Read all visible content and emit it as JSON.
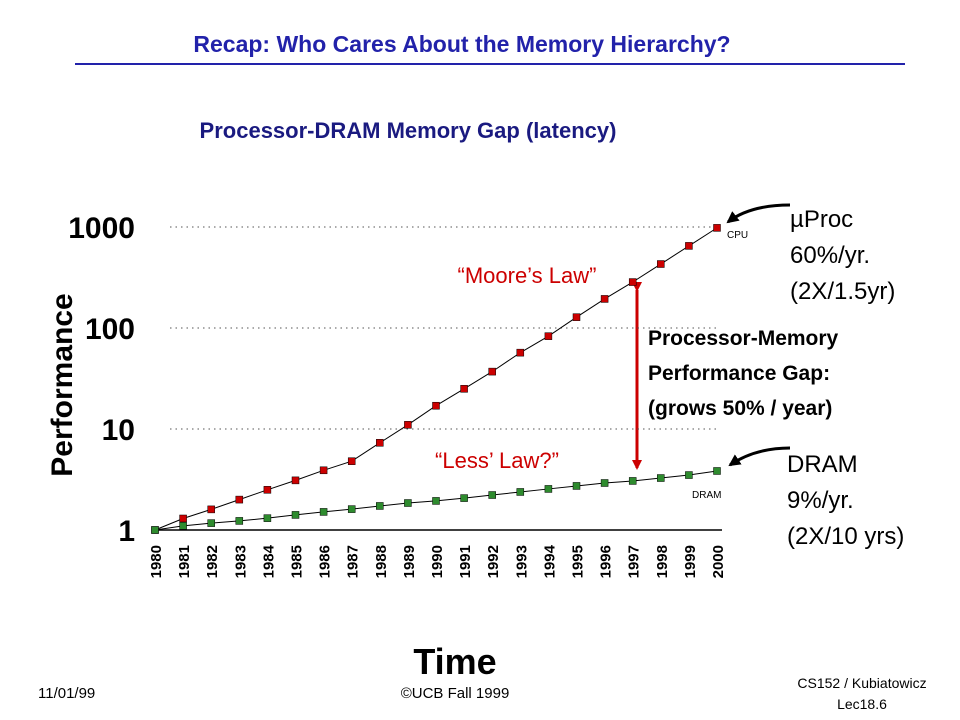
{
  "header": {
    "title": "Recap: Who Cares About the Memory Hierarchy?"
  },
  "chart_data": {
    "type": "line",
    "title": "Processor-DRAM Memory Gap (latency)",
    "x_label": "Time",
    "y_label": "Performance",
    "categories": [
      "1980",
      "1981",
      "1982",
      "1983",
      "1984",
      "1985",
      "1986",
      "1987",
      "1988",
      "1989",
      "1990",
      "1991",
      "1992",
      "1993",
      "1994",
      "1995",
      "1996",
      "1997",
      "1998",
      "1999",
      "2000"
    ],
    "series": [
      {
        "name": "CPU",
        "color": "#cc0000",
        "values": [
          1,
          1.3,
          1.6,
          2,
          2.5,
          3.1,
          3.9,
          4.8,
          7.3,
          11,
          17,
          25,
          37,
          57,
          83,
          128,
          194,
          285,
          430,
          650,
          980
        ]
      },
      {
        "name": "DRAM",
        "color": "#2e8b2e",
        "values": [
          1,
          1.1,
          1.17,
          1.23,
          1.31,
          1.41,
          1.51,
          1.61,
          1.73,
          1.85,
          1.94,
          2.07,
          2.22,
          2.38,
          2.55,
          2.73,
          2.92,
          3.06,
          3.27,
          3.5,
          3.84
        ]
      }
    ],
    "log_y": true,
    "ylim": [
      1,
      1000
    ],
    "yticks": [
      1,
      10,
      100,
      1000
    ],
    "grid": true,
    "annotations": [
      [
        "“Moore’s Law”"
      ],
      [
        "“Less’ Law?”"
      ],
      [
        "Processor-Memory",
        "Performance Gap:",
        "(grows 50% / year)"
      ],
      [
        "µProc",
        "60%/yr.",
        "(2X/1.5yr)"
      ],
      [
        "DRAM",
        "9%/yr.",
        "(2X/10 yrs)"
      ]
    ]
  },
  "footer": {
    "date": "11/01/99",
    "copyright": "©UCB Fall 1999",
    "course": "CS152 / Kubiatowicz",
    "lecture": "Lec18.6"
  }
}
